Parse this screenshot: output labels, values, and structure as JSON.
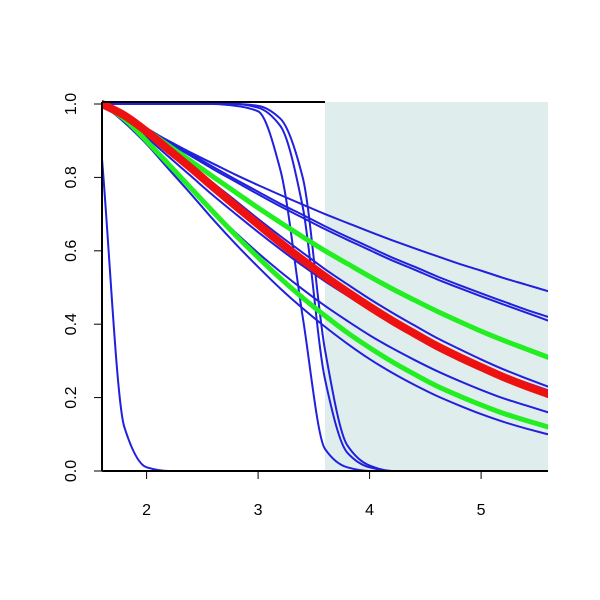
{
  "chart_data": {
    "type": "line",
    "x": [
      1.6,
      1.8,
      2.0,
      2.2,
      2.4,
      2.6,
      2.8,
      3.0,
      3.2,
      3.4,
      3.6,
      3.8,
      4.0,
      4.2,
      4.4,
      4.6,
      4.8,
      5.0,
      5.2,
      5.4,
      5.6
    ],
    "xlim": [
      1.6,
      5.6
    ],
    "ylim": [
      0,
      1
    ],
    "xticks": [
      2,
      3,
      4,
      5
    ],
    "yticks": [
      {
        "value": 0,
        "label": "0.0"
      },
      {
        "value": 0.2,
        "label": "0.2"
      },
      {
        "value": 0.4,
        "label": "0.4"
      },
      {
        "value": 0.6,
        "label": "0.6"
      },
      {
        "value": 0.8,
        "label": "0.8"
      },
      {
        "value": 1,
        "label": "1.0"
      }
    ],
    "shaded_x": [
      3.6,
      5.6
    ],
    "shade_color": "#e0eded",
    "series": [
      {
        "color": "#2020dd",
        "linewidth": 2,
        "values": [
          0.85,
          0.12,
          0.01,
          0,
          0,
          0,
          0,
          0,
          0,
          0,
          0,
          0,
          0,
          0,
          0,
          0,
          0,
          0,
          0,
          0,
          0
        ]
      },
      {
        "color": "#2020dd",
        "linewidth": 2,
        "values": [
          1,
          1,
          1,
          1,
          1,
          1,
          0.995,
          0.98,
          0.82,
          0.42,
          0.06,
          0.01,
          0,
          0,
          0,
          0,
          0,
          0,
          0,
          0,
          0
        ]
      },
      {
        "color": "#2020dd",
        "linewidth": 2,
        "values": [
          1,
          1,
          1,
          1,
          1,
          1,
          1,
          0.99,
          0.94,
          0.72,
          0.25,
          0.05,
          0.01,
          0,
          0,
          0,
          0,
          0,
          0,
          0,
          0
        ]
      },
      {
        "color": "#2020dd",
        "linewidth": 2,
        "values": [
          1,
          1,
          1,
          1,
          1,
          1,
          1,
          0.995,
          0.96,
          0.8,
          0.33,
          0.07,
          0.015,
          0,
          0,
          0,
          0,
          0,
          0,
          0,
          0
        ]
      },
      {
        "color": "#2020dd",
        "linewidth": 2,
        "values": [
          1,
          0.965,
          0.931,
          0.899,
          0.867,
          0.837,
          0.807,
          0.779,
          0.752,
          0.726,
          0.7,
          0.676,
          0.652,
          0.629,
          0.607,
          0.586,
          0.565,
          0.546,
          0.526,
          0.508,
          0.49
        ]
      },
      {
        "color": "#2020dd",
        "linewidth": 2,
        "values": [
          1,
          0.968,
          0.934,
          0.898,
          0.863,
          0.828,
          0.794,
          0.761,
          0.728,
          0.698,
          0.667,
          0.638,
          0.61,
          0.582,
          0.557,
          0.531,
          0.507,
          0.484,
          0.462,
          0.44,
          0.42
        ]
      },
      {
        "color": "#2020dd",
        "linewidth": 2,
        "values": [
          1,
          0.966,
          0.931,
          0.894,
          0.858,
          0.822,
          0.788,
          0.754,
          0.721,
          0.69,
          0.659,
          0.63,
          0.602,
          0.574,
          0.549,
          0.523,
          0.499,
          0.476,
          0.454,
          0.432,
          0.41
        ]
      },
      {
        "color": "#2020dd",
        "linewidth": 2,
        "values": [
          1,
          0.971,
          0.929,
          0.882,
          0.834,
          0.784,
          0.736,
          0.687,
          0.64,
          0.595,
          0.55,
          0.509,
          0.469,
          0.432,
          0.397,
          0.363,
          0.333,
          0.304,
          0.277,
          0.253,
          0.23
        ]
      },
      {
        "color": "#2020dd",
        "linewidth": 2,
        "values": [
          1,
          0.959,
          0.909,
          0.856,
          0.803,
          0.75,
          0.7,
          0.651,
          0.604,
          0.559,
          0.517,
          0.478,
          0.44,
          0.405,
          0.373,
          0.342,
          0.314,
          0.288,
          0.263,
          0.241,
          0.22
        ]
      },
      {
        "color": "#2020dd",
        "linewidth": 2,
        "values": [
          1,
          0.95,
          0.891,
          0.828,
          0.766,
          0.706,
          0.649,
          0.594,
          0.543,
          0.495,
          0.45,
          0.409,
          0.37,
          0.335,
          0.303,
          0.273,
          0.246,
          0.221,
          0.198,
          0.179,
          0.16
        ]
      },
      {
        "color": "#2020dd",
        "linewidth": 2,
        "values": [
          1,
          0.955,
          0.891,
          0.822,
          0.754,
          0.684,
          0.618,
          0.556,
          0.497,
          0.443,
          0.393,
          0.347,
          0.305,
          0.268,
          0.235,
          0.205,
          0.179,
          0.155,
          0.134,
          0.116,
          0.1
        ]
      },
      {
        "color": "#22ee22",
        "linewidth": 5,
        "values": [
          1,
          0.968,
          0.929,
          0.886,
          0.844,
          0.801,
          0.759,
          0.717,
          0.677,
          0.638,
          0.6,
          0.565,
          0.53,
          0.497,
          0.466,
          0.436,
          0.408,
          0.381,
          0.356,
          0.333,
          0.31
        ]
      },
      {
        "color": "#22ee22",
        "linewidth": 5,
        "values": [
          1,
          0.959,
          0.899,
          0.835,
          0.77,
          0.705,
          0.642,
          0.582,
          0.525,
          0.472,
          0.423,
          0.377,
          0.336,
          0.298,
          0.264,
          0.232,
          0.205,
          0.18,
          0.157,
          0.138,
          0.12
        ]
      },
      {
        "color": "#ee1111",
        "linewidth": 8,
        "values": [
          1,
          0.969,
          0.925,
          0.875,
          0.825,
          0.773,
          0.722,
          0.672,
          0.622,
          0.575,
          0.53,
          0.488,
          0.448,
          0.41,
          0.375,
          0.341,
          0.311,
          0.283,
          0.256,
          0.232,
          0.21
        ]
      }
    ]
  }
}
